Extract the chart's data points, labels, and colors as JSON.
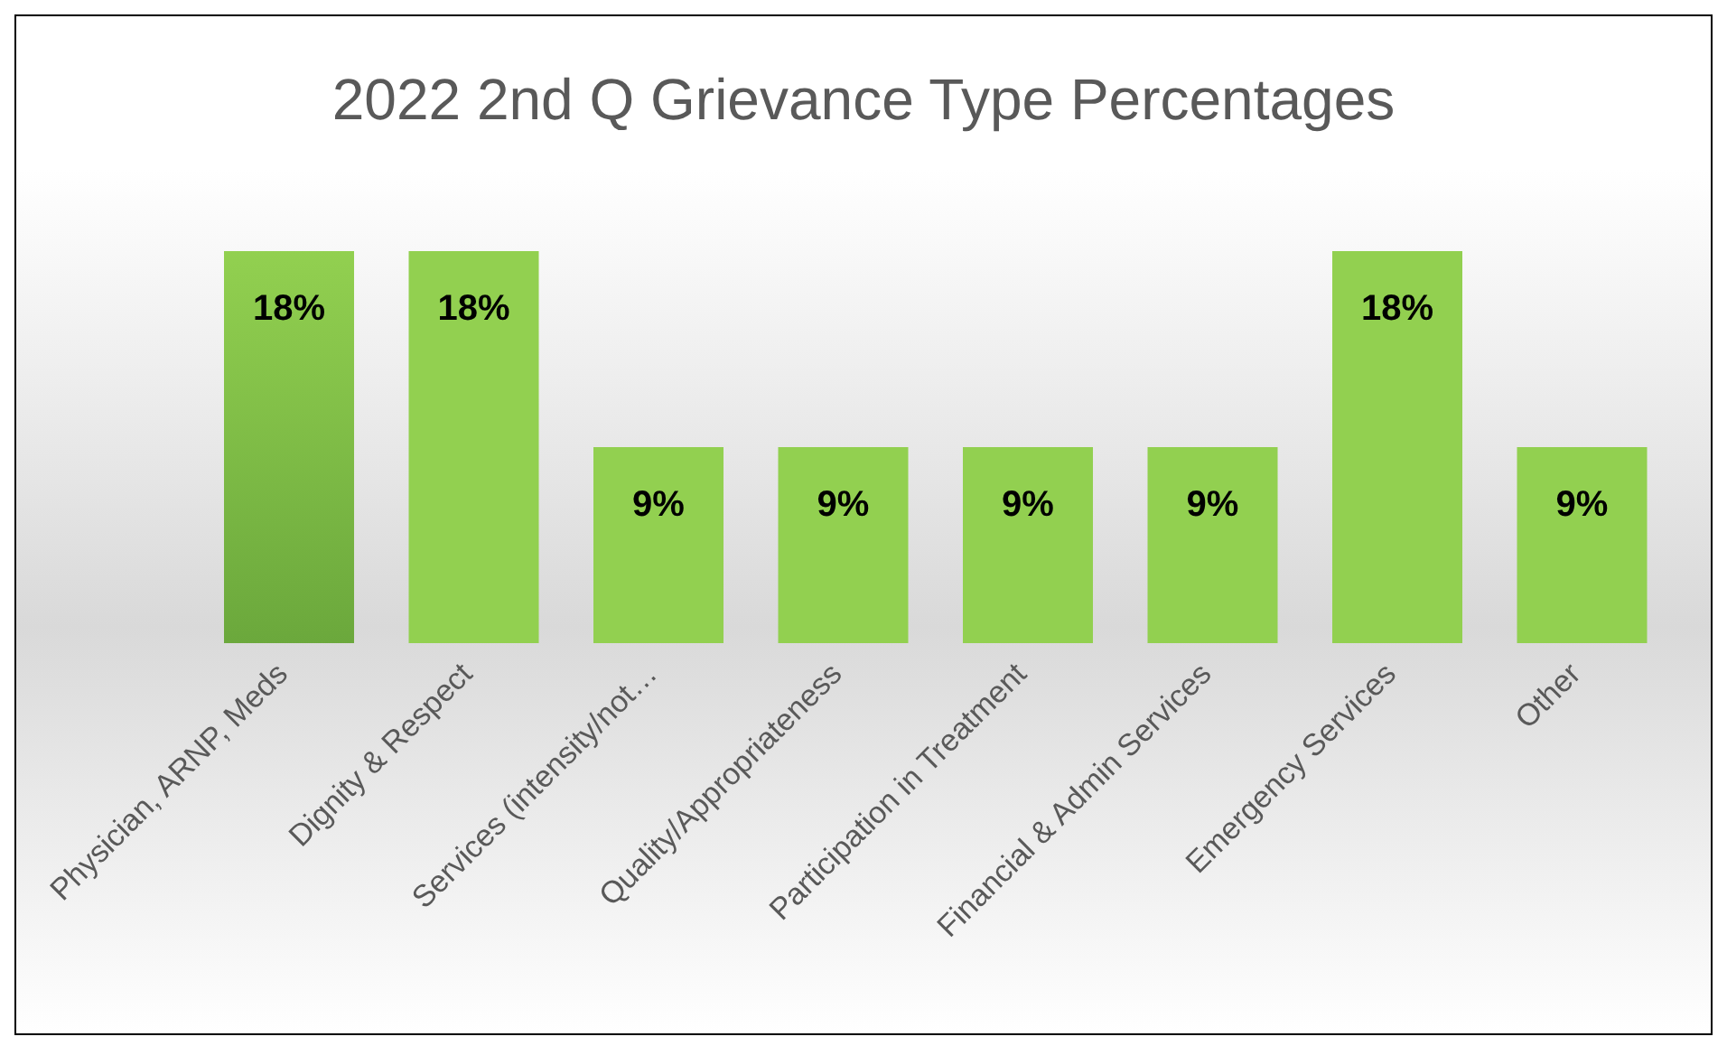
{
  "chart_data": {
    "type": "bar",
    "title": "2022 2nd Q Grievance Type Percentages",
    "categories": [
      "Physician, ARNP, Meds",
      "Dignity & Respect",
      "Services (intensity/not…",
      "Quality/Appropriateness",
      "Participation in Treatment",
      "Financial & Admin Services",
      "Emergency Services",
      "Other"
    ],
    "values": [
      18,
      18,
      9,
      9,
      9,
      9,
      18,
      9
    ],
    "colors": [
      "#6ba83c",
      "#92d050",
      "#92d050",
      "#92d050",
      "#92d050",
      "#92d050",
      "#92d050",
      "#92d050"
    ],
    "value_labels": [
      "18%",
      "18%",
      "9%",
      "9%",
      "9%",
      "9%",
      "18%",
      "9%"
    ],
    "grid": false,
    "legend": false
  }
}
